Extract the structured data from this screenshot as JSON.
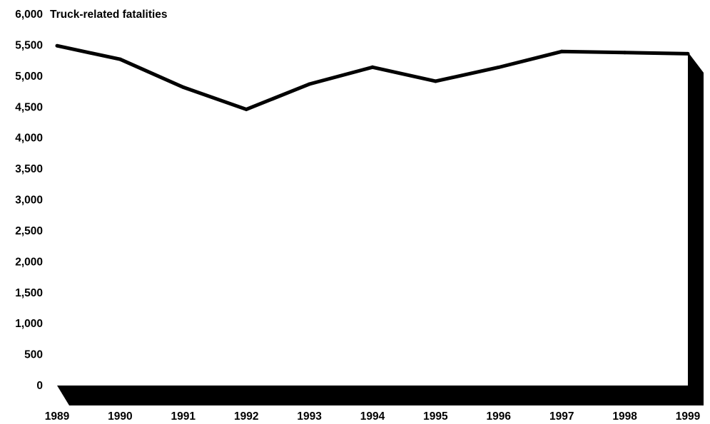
{
  "chart_data": {
    "type": "line",
    "title": "",
    "xlabel": "",
    "ylabel": "Truck-related fatalities",
    "x": [
      "1989",
      "1990",
      "1991",
      "1992",
      "1993",
      "1994",
      "1995",
      "1996",
      "1997",
      "1998",
      "1999"
    ],
    "series": [
      {
        "values": [
          5491,
          5272,
          4821,
          4462,
          4871,
          5144,
          4918,
          5142,
          5398,
          5380,
          5362
        ]
      }
    ],
    "ylim": [
      0,
      6000
    ],
    "yticks": [
      "0",
      "500",
      "1,000",
      "1,500",
      "2,000",
      "2,500",
      "3,000",
      "3,500",
      "4,000",
      "4,500",
      "5,000",
      "5,500",
      "6,000"
    ],
    "grid": false,
    "line_color": "#000000"
  }
}
